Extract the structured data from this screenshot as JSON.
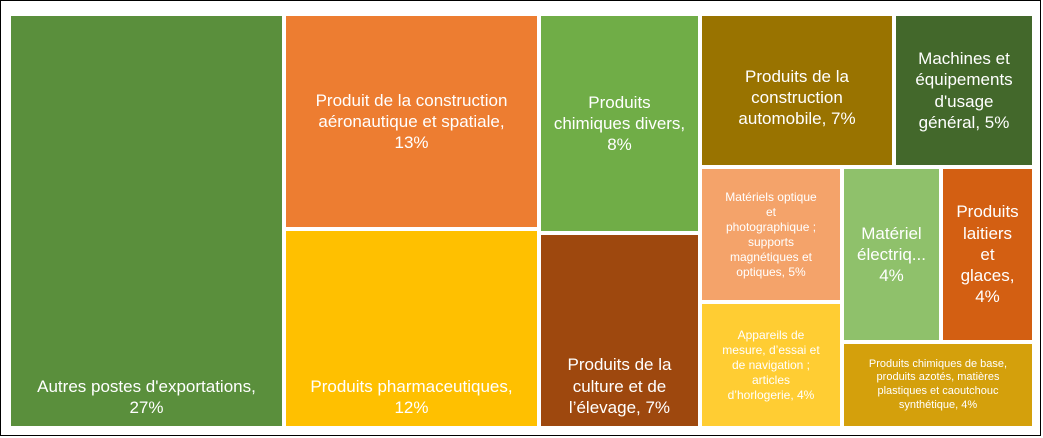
{
  "chart_data": {
    "type": "treemap",
    "title": "",
    "items": [
      {
        "key": "autres",
        "label": "Autres postes d'exportations,\n27%",
        "value": 27,
        "color": "#5a8f3c"
      },
      {
        "key": "aero",
        "label": "Produit de la construction\naéronautique et spatiale,\n13%",
        "value": 13,
        "color": "#ed7d31"
      },
      {
        "key": "pharma",
        "label": "Produits pharmaceutiques,\n12%",
        "value": 12,
        "color": "#ffc000"
      },
      {
        "key": "chim-divers",
        "label": "Produits\nchimiques divers,\n8%",
        "value": 8,
        "color": "#70ad47"
      },
      {
        "key": "culture",
        "label": "Produits de la\nculture et de\nl’élevage, 7%",
        "value": 7,
        "color": "#9e480e"
      },
      {
        "key": "auto",
        "label": "Produits de la\nconstruction\nautomobile, 7%",
        "value": 7,
        "color": "#997300"
      },
      {
        "key": "machines",
        "label": "Machines et\néquipements\nd'usage\ngénéral, 5%",
        "value": 5,
        "color": "#43682b"
      },
      {
        "key": "optique",
        "label": "Matériels optique\net\nphotographique ;\nsupports\nmagnétiques et\noptiques, 5%",
        "value": 5,
        "color": "#f4a36a"
      },
      {
        "key": "mesure",
        "label": "Appareils de\nmesure, d’essai et\nde navigation ;\narticles\nd’horlogerie, 4%",
        "value": 4,
        "color": "#ffcd33"
      },
      {
        "key": "electrique",
        "label": "Matériel\nélectriq...\n4%",
        "value": 4,
        "color": "#8fc16b"
      },
      {
        "key": "laitiers",
        "label": "Produits\nlaitiers\net\nglaces,\n4%",
        "value": 4,
        "color": "#d35f12"
      },
      {
        "key": "chim-base",
        "label": "Produits chimiques de base,\nproduits azotés, matières\nplastiques et caoutchouc\nsynthétique, 4%",
        "value": 4,
        "color": "#d4a00c"
      }
    ]
  }
}
